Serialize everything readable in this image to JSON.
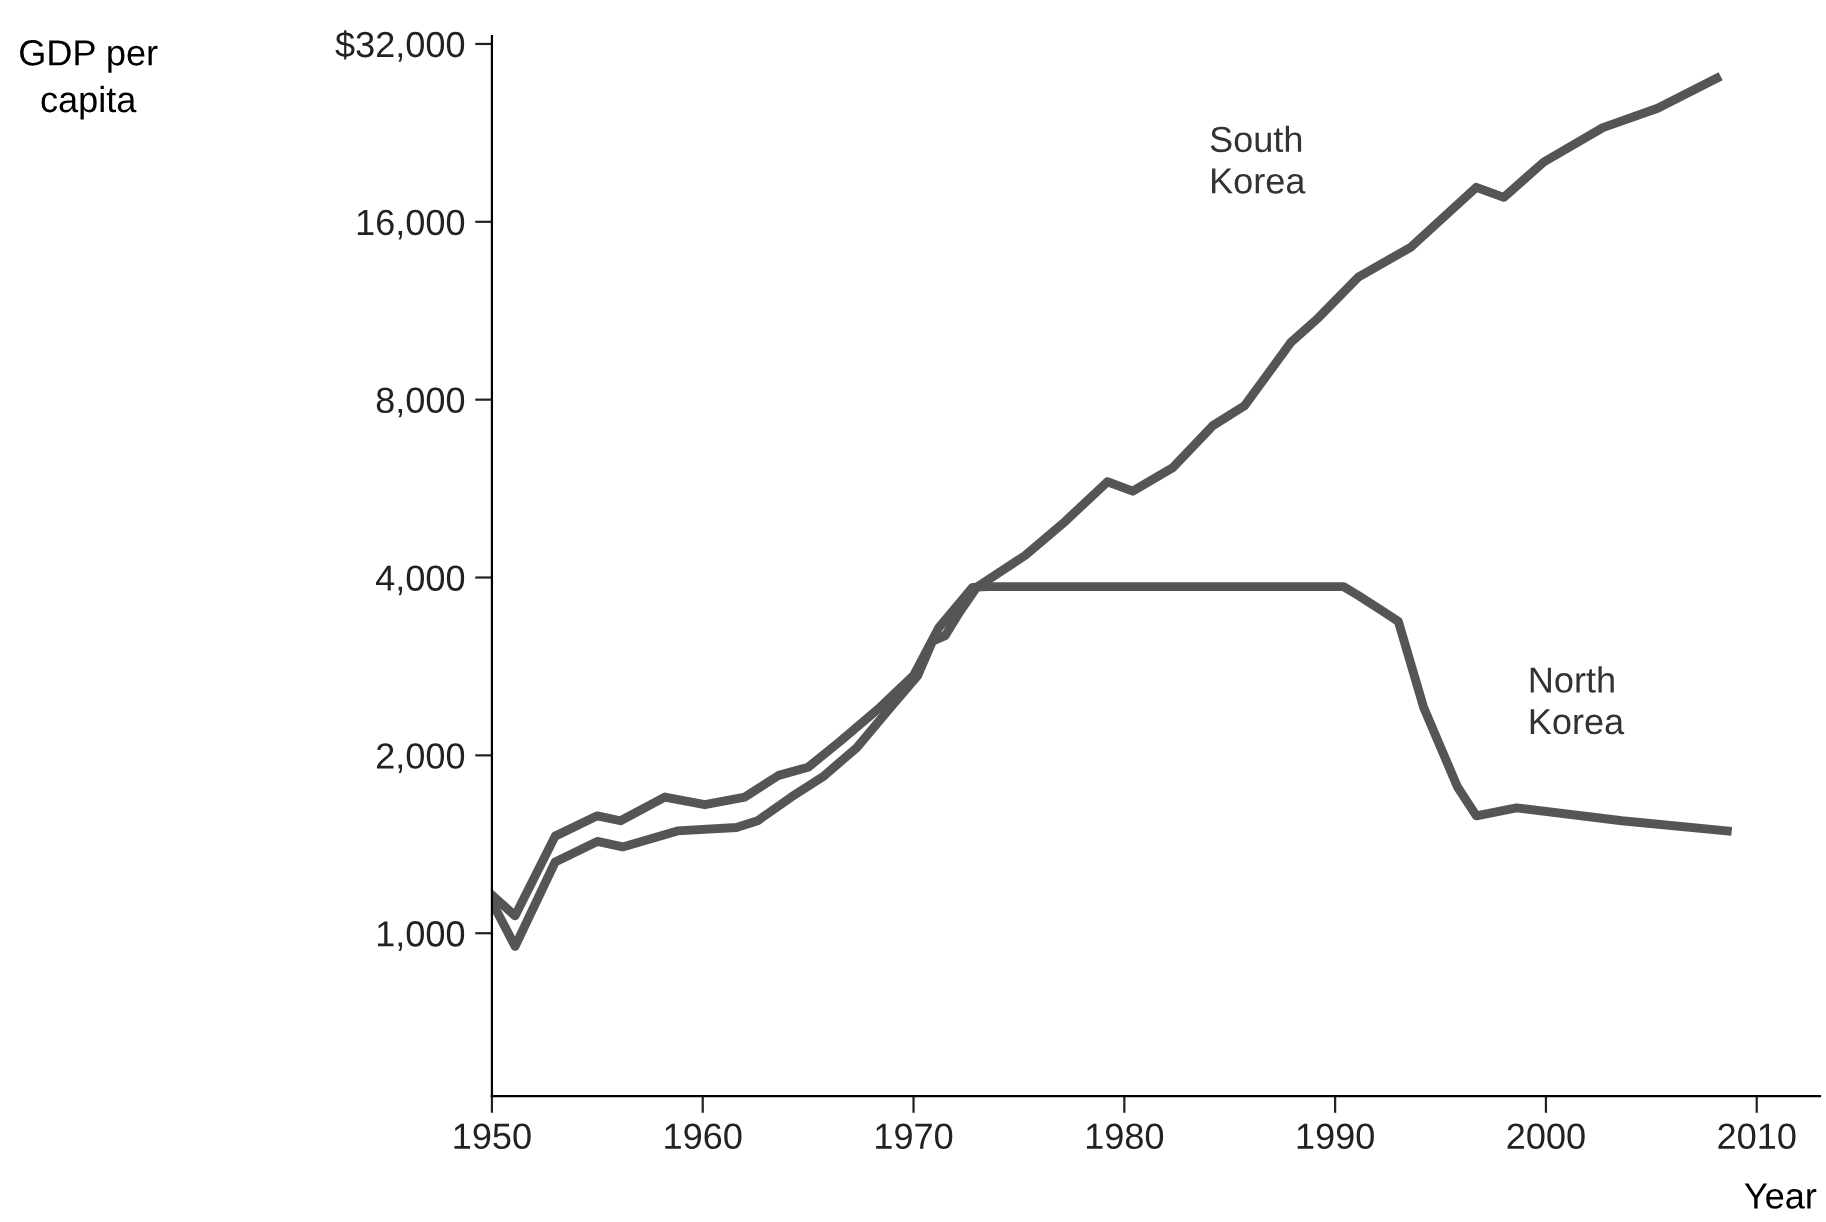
{
  "chart_data": {
    "type": "line",
    "ylabel": "GDP per\ncapita",
    "xlabel": "Year",
    "series": [
      {
        "name": "South\nKorea",
        "color": "#555555",
        "x": [
          1950,
          1951.1,
          1953,
          1955,
          1956.2,
          1958.8,
          1961.6,
          1962.6,
          1964.2,
          1965.7,
          1967.3,
          1968.9,
          1970.2,
          1970.9,
          1971.5,
          1972.2,
          1973,
          1975.3,
          1977.2,
          1979.2,
          1980.4,
          1982.3,
          1984.2,
          1985.7,
          1987.9,
          1989.2,
          1991.1,
          1993.6,
          1996.7,
          1998,
          1999.9,
          2002.7,
          2005.3,
          2008.1
        ],
        "values": [
          1130,
          950,
          1320,
          1430,
          1400,
          1490,
          1510,
          1550,
          1700,
          1840,
          2060,
          2410,
          2730,
          3120,
          3190,
          3500,
          3850,
          4360,
          4980,
          5810,
          5600,
          6140,
          7230,
          7810,
          10000,
          11000,
          12900,
          14500,
          18300,
          17600,
          20200,
          23100,
          24900,
          28000
        ]
      },
      {
        "name": "North\nKorea",
        "color": "#555555",
        "x": [
          1950,
          1951.1,
          1953,
          1955,
          1956.1,
          1958.2,
          1960.1,
          1962,
          1963.6,
          1965,
          1966.5,
          1968.4,
          1970,
          1971.2,
          1972.8,
          1973.5,
          1990.4,
          1991.1,
          1992.3,
          1993,
          1994.2,
          1995.8,
          1996.7,
          1998.6,
          2003.6,
          2008.6
        ],
        "values": [
          1160,
          1070,
          1460,
          1580,
          1550,
          1700,
          1650,
          1700,
          1850,
          1910,
          2110,
          2410,
          2730,
          3290,
          3850,
          3860,
          3860,
          3730,
          3500,
          3370,
          2410,
          1770,
          1580,
          1630,
          1550,
          1490
        ]
      }
    ],
    "log": "y",
    "xlim": [
      1950,
      2013
    ],
    "xticks": [
      1950,
      1960,
      1970,
      1980,
      1990,
      2000,
      2010
    ],
    "ylim": [
      530,
      33000
    ],
    "yticks": [
      {
        "value": 1000,
        "label": "1,000"
      },
      {
        "value": 2000,
        "label": "2,000"
      },
      {
        "value": 4000,
        "label": "4,000"
      },
      {
        "value": 8000,
        "label": "8,000"
      },
      {
        "value": 16000,
        "label": "16,000"
      },
      {
        "value": 32000,
        "label": "$32,000"
      }
    ],
    "grid": false,
    "legend": false,
    "marker": "none",
    "line_style": "solid"
  }
}
